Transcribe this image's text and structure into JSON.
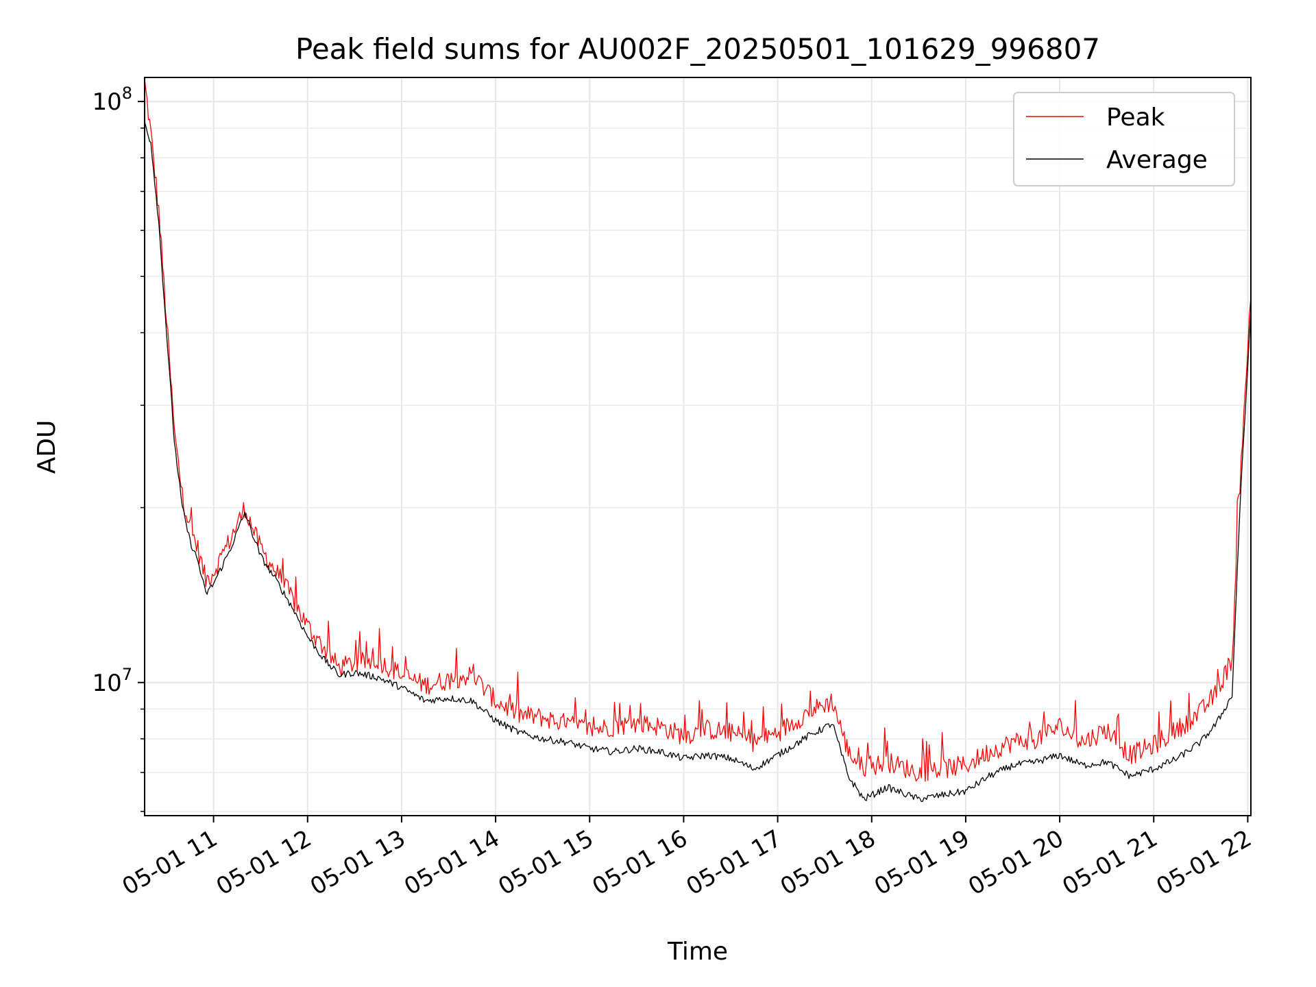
{
  "chart_data": {
    "type": "line",
    "title": "Peak field sums for AU002F_20250501_101629_996807",
    "xlabel": "Time",
    "ylabel": "ADU",
    "y_scale": "log",
    "ylim": [
      5900000,
      110000000
    ],
    "xlim": [
      "05-01 10:16",
      "05-01 22:02"
    ],
    "grid": true,
    "legend_position": "top-right",
    "x_ticks": [
      "05-01 11",
      "05-01 12",
      "05-01 13",
      "05-01 14",
      "05-01 15",
      "05-01 16",
      "05-01 17",
      "05-01 18",
      "05-01 19",
      "05-01 20",
      "05-01 21",
      "05-01 22"
    ],
    "y_ticks": [
      {
        "value": 10000000,
        "base": "10",
        "exp": "7"
      },
      {
        "value": 100000000,
        "base": "10",
        "exp": "8"
      }
    ],
    "series": [
      {
        "name": "Peak",
        "color": "#ff0000",
        "x": [
          "05-01 10:16",
          "05-01 10:20",
          "05-01 10:25",
          "05-01 10:30",
          "05-01 10:35",
          "05-01 10:40",
          "05-01 10:45",
          "05-01 10:50",
          "05-01 10:55",
          "05-01 11:00",
          "05-01 11:10",
          "05-01 11:20",
          "05-01 11:30",
          "05-01 11:40",
          "05-01 11:50",
          "05-01 12:00",
          "05-01 12:10",
          "05-01 12:20",
          "05-01 12:30",
          "05-01 12:45",
          "05-01 13:00",
          "05-01 13:15",
          "05-01 13:30",
          "05-01 13:45",
          "05-01 14:00",
          "05-01 14:15",
          "05-01 14:30",
          "05-01 14:45",
          "05-01 15:00",
          "05-01 15:15",
          "05-01 15:30",
          "05-01 15:45",
          "05-01 16:00",
          "05-01 16:15",
          "05-01 16:30",
          "05-01 16:45",
          "05-01 17:00",
          "05-01 17:20",
          "05-01 17:35",
          "05-01 17:45",
          "05-01 17:55",
          "05-01 18:10",
          "05-01 18:30",
          "05-01 18:45",
          "05-01 19:00",
          "05-01 19:15",
          "05-01 19:30",
          "05-01 19:45",
          "05-01 20:00",
          "05-01 20:15",
          "05-01 20:30",
          "05-01 20:45",
          "05-01 21:00",
          "05-01 21:15",
          "05-01 21:30",
          "05-01 21:40",
          "05-01 21:50",
          "05-01 21:55",
          "05-01 22:00",
          "05-01 22:02"
        ],
        "y": [
          108000000,
          88000000,
          65000000,
          42000000,
          27000000,
          21000000,
          18500000,
          17000000,
          15000000,
          15500000,
          17500000,
          20000000,
          17000000,
          15500000,
          14000000,
          12500000,
          11500000,
          10600000,
          10800000,
          10900000,
          10300000,
          9900000,
          10100000,
          10300000,
          9300000,
          8800000,
          8700000,
          8500000,
          8300000,
          8400000,
          8500000,
          8400000,
          8100000,
          8300000,
          8200000,
          7900000,
          8200000,
          8900000,
          9300000,
          7600000,
          7100000,
          7300000,
          7000000,
          7100000,
          7200000,
          7600000,
          7900000,
          8000000,
          8400000,
          7900000,
          8300000,
          7500000,
          7800000,
          8300000,
          8900000,
          9600000,
          11000000,
          22000000,
          38000000,
          46000000
        ]
      },
      {
        "name": "Average",
        "color": "#000000",
        "x": [
          "05-01 10:16",
          "05-01 10:20",
          "05-01 10:25",
          "05-01 10:30",
          "05-01 10:35",
          "05-01 10:40",
          "05-01 10:45",
          "05-01 10:50",
          "05-01 10:55",
          "05-01 11:00",
          "05-01 11:10",
          "05-01 11:20",
          "05-01 11:30",
          "05-01 11:40",
          "05-01 11:50",
          "05-01 12:00",
          "05-01 12:10",
          "05-01 12:20",
          "05-01 12:30",
          "05-01 12:45",
          "05-01 13:00",
          "05-01 13:15",
          "05-01 13:30",
          "05-01 13:45",
          "05-01 14:00",
          "05-01 14:15",
          "05-01 14:30",
          "05-01 14:45",
          "05-01 15:00",
          "05-01 15:15",
          "05-01 15:30",
          "05-01 15:45",
          "05-01 16:00",
          "05-01 16:15",
          "05-01 16:30",
          "05-01 16:45",
          "05-01 17:00",
          "05-01 17:20",
          "05-01 17:35",
          "05-01 17:45",
          "05-01 17:55",
          "05-01 18:10",
          "05-01 18:30",
          "05-01 18:45",
          "05-01 19:00",
          "05-01 19:15",
          "05-01 19:30",
          "05-01 19:45",
          "05-01 20:00",
          "05-01 20:15",
          "05-01 20:30",
          "05-01 20:45",
          "05-01 21:00",
          "05-01 21:15",
          "05-01 21:30",
          "05-01 21:40",
          "05-01 21:50",
          "05-01 21:55",
          "05-01 22:00",
          "05-01 22:02"
        ],
        "y": [
          92000000,
          85000000,
          62000000,
          40000000,
          26000000,
          20000000,
          17500000,
          16200000,
          14200000,
          14800000,
          16800000,
          19600000,
          16500000,
          15000000,
          13500000,
          12000000,
          11000000,
          10300000,
          10400000,
          10200000,
          9800000,
          9300000,
          9400000,
          9300000,
          8600000,
          8200000,
          8000000,
          7900000,
          7700000,
          7600000,
          7700000,
          7600000,
          7400000,
          7500000,
          7400000,
          7100000,
          7500000,
          8100000,
          8500000,
          6900000,
          6300000,
          6600000,
          6300000,
          6400000,
          6500000,
          6900000,
          7200000,
          7300000,
          7500000,
          7200000,
          7300000,
          6900000,
          7100000,
          7400000,
          7900000,
          8500000,
          9500000,
          20000000,
          35000000,
          44000000
        ]
      }
    ]
  }
}
